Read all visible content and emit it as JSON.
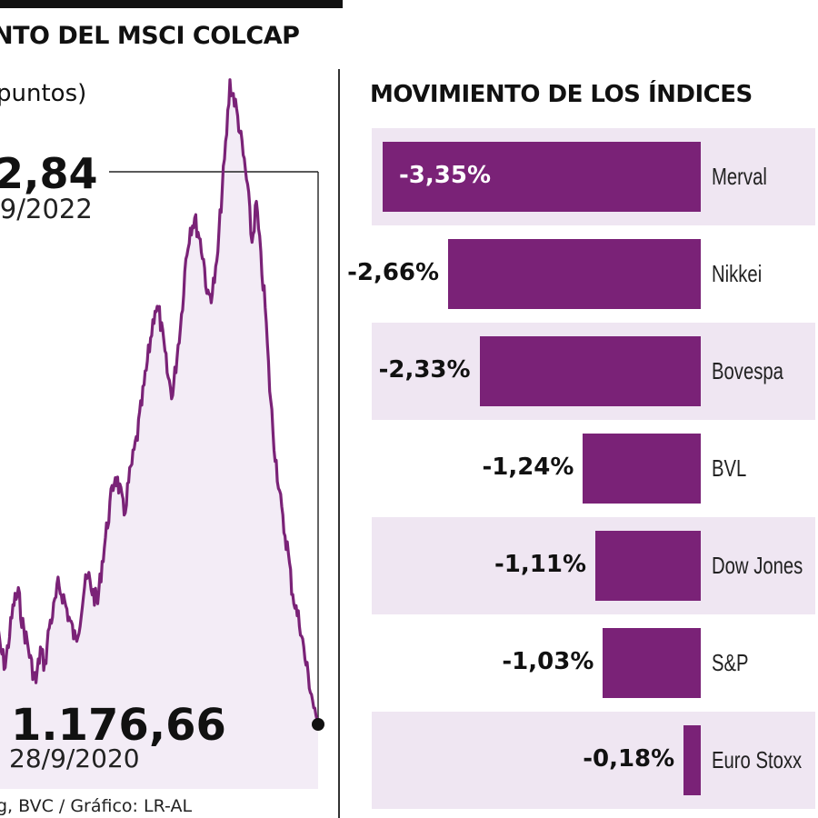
{
  "left_chart": {
    "title": "NTO DEL MSCI COLCAP",
    "unit": "puntos)",
    "peak_value": "2,84",
    "peak_date": "/9/2022",
    "low_value": "1.176,66",
    "low_date": "28/9/2020",
    "source": "g, BVC / Gráfico: LR-AL"
  },
  "right_chart": {
    "title": "MOVIMIENTO DE LOS ÍNDICES"
  },
  "colors": {
    "bar": "#7a2277",
    "band": "#efe6f2",
    "line": "#7a2277",
    "area": "#f3ecf6"
  },
  "chart_data": [
    {
      "type": "area",
      "title": "NTO DEL MSCI COLCAP",
      "ylabel": "puntos)",
      "annotations": [
        {
          "label": "2,84",
          "date": "/9/2022"
        },
        {
          "label": "1.176,66",
          "date": "28/9/2020"
        }
      ],
      "y": [
        1300,
        1270,
        1250,
        1290,
        1330,
        1340,
        1300,
        1280,
        1250,
        1230,
        1270,
        1250,
        1300,
        1320,
        1350,
        1340,
        1320,
        1300,
        1280,
        1310,
        1350,
        1360,
        1340,
        1330,
        1380,
        1420,
        1460,
        1490,
        1470,
        1440,
        1480,
        1510,
        1540,
        1580,
        1620,
        1660,
        1700,
        1690,
        1650,
        1610,
        1590,
        1640,
        1690,
        1760,
        1800,
        1810,
        1790,
        1760,
        1710,
        1720,
        1750,
        1830,
        1900,
        1980,
        1960,
        1930,
        1890,
        1850,
        1780,
        1830,
        1760,
        1700,
        1600,
        1530,
        1480,
        1430,
        1400,
        1350,
        1320,
        1300,
        1260,
        1230,
        1200,
        1176.66
      ]
    },
    {
      "type": "bar",
      "title": "MOVIMIENTO DE LOS ÍNDICES",
      "categories": [
        "Merval",
        "Nikkei",
        "Bovespa",
        "BVL",
        "Dow Jones",
        "S&P",
        "Euro Stoxx"
      ],
      "values": [
        -3.35,
        -2.66,
        -2.33,
        -1.24,
        -1.11,
        -1.03,
        -0.18
      ],
      "labels": [
        "-3,35%",
        "-2,66%",
        "-2,33%",
        "-1,24%",
        "-1,11%",
        "-1,03%",
        "-0,18%"
      ]
    }
  ]
}
